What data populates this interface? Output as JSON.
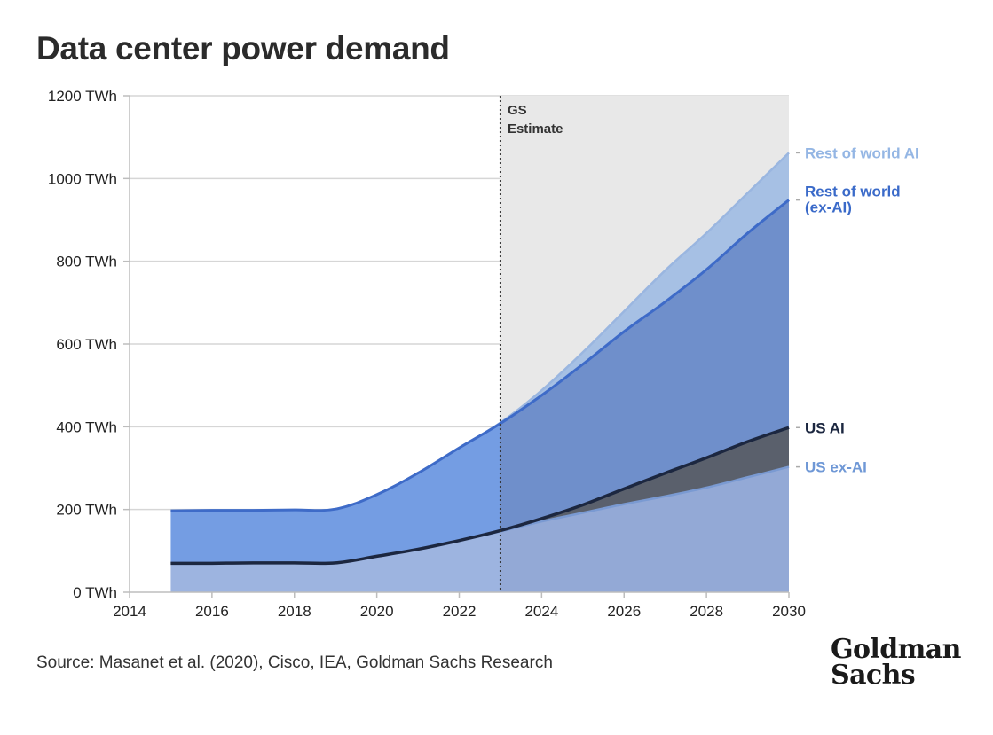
{
  "title": "Data center power demand",
  "source": "Source: Masanet et al. (2020), Cisco, IEA, Goldman Sachs Research",
  "logo": {
    "line1": "Goldman",
    "line2": "Sachs"
  },
  "colors": {
    "us_ex_ai": "#9db4e0",
    "us_ai": "#5a606c",
    "row_ex_ai_hist": "#749de3",
    "row_ex_ai_est": "#6f8fcb",
    "row_ai": "#a6c0e4",
    "estimate_shade": "#e8e8e8",
    "label_row_ai": "#94b6e4",
    "label_row_ex_ai": "#3a6ac9",
    "label_us_ai": "#1c2740",
    "label_us_ex_ai": "#6f98d6"
  },
  "chart_data": {
    "type": "area",
    "title": "Data center power demand",
    "x": [
      2015,
      2016,
      2017,
      2018,
      2019,
      2020,
      2021,
      2022,
      2023,
      2024,
      2025,
      2026,
      2027,
      2028,
      2029,
      2030
    ],
    "xlim": [
      2014,
      2030
    ],
    "ylim": [
      0,
      1200
    ],
    "x_ticks": [
      "2014",
      "2016",
      "2018",
      "2020",
      "2022",
      "2024",
      "2026",
      "2028",
      "2030"
    ],
    "y_ticks": [
      "0 TWh",
      "200 TWh",
      "400 TWh",
      "600 TWh",
      "800 TWh",
      "1000 TWh",
      "1200 TWh"
    ],
    "stacked": true,
    "series": [
      {
        "name": "US ex-AI",
        "cumulative": [
          70,
          70,
          71,
          71,
          71,
          87,
          104,
          125,
          147,
          171,
          192,
          213,
          232,
          253,
          278,
          303
        ]
      },
      {
        "name": "US AI",
        "cumulative": [
          70,
          70,
          71,
          71,
          71,
          87,
          104,
          125,
          149,
          178,
          211,
          250,
          288,
          325,
          364,
          398
        ]
      },
      {
        "name": "Rest of world\n(ex-AI)",
        "cumulative": [
          197,
          198,
          198,
          199,
          201,
          236,
          288,
          349,
          408,
          476,
          551,
          630,
          702,
          780,
          868,
          948
        ]
      },
      {
        "name": "Rest of world AI",
        "cumulative": [
          197,
          198,
          198,
          199,
          201,
          236,
          288,
          349,
          410,
          488,
          580,
          679,
          778,
          868,
          965,
          1062
        ]
      }
    ],
    "estimate_start": 2023,
    "annotation": "GS\nEstimate",
    "grid": true
  }
}
